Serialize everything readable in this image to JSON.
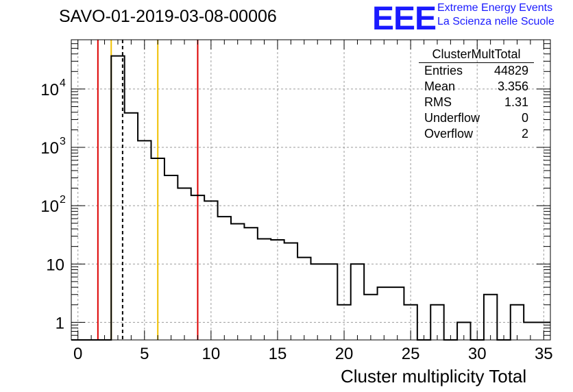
{
  "page_title": "SAVO-01-2019-03-08-00006",
  "logo": {
    "mark": "EEE",
    "line1": "Extreme Energy Events",
    "line2": "La Scienza nelle Scuole"
  },
  "stats": {
    "title": "ClusterMultTotal",
    "rows": [
      {
        "label": "Entries",
        "value": "44829"
      },
      {
        "label": "Mean",
        "value": "3.356"
      },
      {
        "label": "RMS",
        "value": "1.31"
      },
      {
        "label": "Underflow",
        "value": "0"
      },
      {
        "label": "Overflow",
        "value": "2"
      }
    ]
  },
  "chart_data": {
    "type": "bar",
    "histogram": true,
    "xlabel": "Cluster multiplicity Total",
    "ylabel": "",
    "x_range": [
      -0.5,
      35.5
    ],
    "y_range": [
      0.5,
      70000
    ],
    "log_y": true,
    "grid": true,
    "x_ticks": [
      0,
      5,
      10,
      15,
      20,
      25,
      30,
      35
    ],
    "y_tick_labels": [
      {
        "value": 1,
        "label": "1"
      },
      {
        "value": 10,
        "label": "10"
      },
      {
        "value": 100,
        "label": "10",
        "exp": "2"
      },
      {
        "value": 1000,
        "label": "10",
        "exp": "3"
      },
      {
        "value": 10000,
        "label": "10",
        "exp": "4"
      }
    ],
    "bins": [
      {
        "x": 0,
        "y": 0
      },
      {
        "x": 1,
        "y": 0
      },
      {
        "x": 2,
        "y": 0
      },
      {
        "x": 3,
        "y": 37000
      },
      {
        "x": 4,
        "y": 3900
      },
      {
        "x": 5,
        "y": 1300
      },
      {
        "x": 6,
        "y": 650
      },
      {
        "x": 7,
        "y": 330
      },
      {
        "x": 8,
        "y": 200
      },
      {
        "x": 9,
        "y": 150
      },
      {
        "x": 10,
        "y": 120
      },
      {
        "x": 11,
        "y": 65
      },
      {
        "x": 12,
        "y": 49
      },
      {
        "x": 13,
        "y": 42
      },
      {
        "x": 14,
        "y": 27
      },
      {
        "x": 15,
        "y": 26
      },
      {
        "x": 16,
        "y": 23
      },
      {
        "x": 17,
        "y": 13
      },
      {
        "x": 18,
        "y": 10
      },
      {
        "x": 19,
        "y": 10
      },
      {
        "x": 20,
        "y": 2
      },
      {
        "x": 21,
        "y": 10
      },
      {
        "x": 22,
        "y": 3
      },
      {
        "x": 23,
        "y": 4
      },
      {
        "x": 24,
        "y": 4
      },
      {
        "x": 25,
        "y": 2
      },
      {
        "x": 26,
        "y": 0
      },
      {
        "x": 27,
        "y": 2
      },
      {
        "x": 28,
        "y": 0
      },
      {
        "x": 29,
        "y": 1
      },
      {
        "x": 30,
        "y": 0
      },
      {
        "x": 31,
        "y": 3
      },
      {
        "x": 32,
        "y": 0
      },
      {
        "x": 33,
        "y": 2
      },
      {
        "x": 34,
        "y": 1
      },
      {
        "x": 35,
        "y": 1
      }
    ],
    "vlines": [
      {
        "x": 1.5,
        "color": "#dd0000",
        "style": "solid"
      },
      {
        "x": 2.5,
        "color": "#f0c000",
        "style": "solid"
      },
      {
        "x": 3.356,
        "color": "#000000",
        "style": "dashed"
      },
      {
        "x": 6.0,
        "color": "#f0c000",
        "style": "solid"
      },
      {
        "x": 9.0,
        "color": "#dd0000",
        "style": "solid"
      }
    ]
  }
}
